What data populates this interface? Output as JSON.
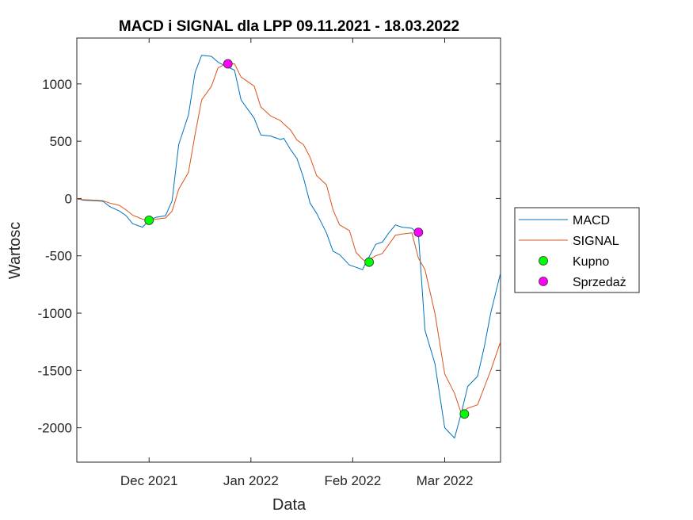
{
  "chart_data": {
    "type": "line",
    "title": "MACD i SIGNAL dla LPP 09.11.2021 - 18.03.2022",
    "xlabel": "Data",
    "ylabel": "Wartosc",
    "xlim": [
      "2021-11-09",
      "2022-03-18"
    ],
    "ylim": [
      -2300,
      1400
    ],
    "y_ticks": [
      -2000,
      -1500,
      -1000,
      -500,
      0,
      500,
      1000
    ],
    "y_tick_labels": [
      "-2000",
      "-1500",
      "-1000",
      "-500",
      "0",
      "500",
      "1000"
    ],
    "x_ticks": [
      "2021-12-01",
      "2022-01-01",
      "2022-02-01",
      "2022-03-01"
    ],
    "x_tick_labels": [
      "Dec 2021",
      "Jan 2022",
      "Feb 2022",
      "Mar 2022"
    ],
    "grid": false,
    "legend_position": "right",
    "series": [
      {
        "name": "MACD",
        "color": "#0072BD",
        "points": [
          [
            "2021-11-09",
            0
          ],
          [
            "2021-11-11",
            -15
          ],
          [
            "2021-11-15",
            -20
          ],
          [
            "2021-11-17",
            -25
          ],
          [
            "2021-11-19",
            -70
          ],
          [
            "2021-11-22",
            -110
          ],
          [
            "2021-11-24",
            -150
          ],
          [
            "2021-11-26",
            -220
          ],
          [
            "2021-11-29",
            -250
          ],
          [
            "2021-12-01",
            -190
          ],
          [
            "2021-12-03",
            -165
          ],
          [
            "2021-12-06",
            -150
          ],
          [
            "2021-12-08",
            -20
          ],
          [
            "2021-12-10",
            470
          ],
          [
            "2021-12-13",
            730
          ],
          [
            "2021-12-15",
            1100
          ],
          [
            "2021-12-17",
            1250
          ],
          [
            "2021-12-20",
            1240
          ],
          [
            "2021-12-22",
            1190
          ],
          [
            "2021-12-24",
            1160
          ],
          [
            "2021-12-27",
            1120
          ],
          [
            "2021-12-29",
            860
          ],
          [
            "2022-01-02",
            700
          ],
          [
            "2022-01-04",
            555
          ],
          [
            "2022-01-07",
            545
          ],
          [
            "2022-01-10",
            515
          ],
          [
            "2022-01-11",
            525
          ],
          [
            "2022-01-13",
            430
          ],
          [
            "2022-01-15",
            350
          ],
          [
            "2022-01-17",
            180
          ],
          [
            "2022-01-19",
            -40
          ],
          [
            "2022-01-21",
            -130
          ],
          [
            "2022-01-24",
            -300
          ],
          [
            "2022-01-26",
            -460
          ],
          [
            "2022-01-28",
            -490
          ],
          [
            "2022-01-31",
            -580
          ],
          [
            "2022-02-02",
            -600
          ],
          [
            "2022-02-04",
            -620
          ],
          [
            "2022-02-05",
            -560
          ],
          [
            "2022-02-08",
            -400
          ],
          [
            "2022-02-10",
            -380
          ],
          [
            "2022-02-12",
            -300
          ],
          [
            "2022-02-14",
            -230
          ],
          [
            "2022-02-16",
            -250
          ],
          [
            "2022-02-19",
            -260
          ],
          [
            "2022-02-21",
            -310
          ],
          [
            "2022-02-23",
            -1150
          ],
          [
            "2022-02-26",
            -1440
          ],
          [
            "2022-03-01",
            -2000
          ],
          [
            "2022-03-04",
            -2090
          ],
          [
            "2022-03-06",
            -1880
          ],
          [
            "2022-03-08",
            -1640
          ],
          [
            "2022-03-11",
            -1550
          ],
          [
            "2022-03-13",
            -1300
          ],
          [
            "2022-03-15",
            -1000
          ],
          [
            "2022-03-18",
            -650
          ]
        ]
      },
      {
        "name": "SIGNAL",
        "color": "#D95319",
        "points": [
          [
            "2021-11-09",
            -5
          ],
          [
            "2021-11-11",
            -10
          ],
          [
            "2021-11-15",
            -15
          ],
          [
            "2021-11-17",
            -20
          ],
          [
            "2021-11-19",
            -40
          ],
          [
            "2021-11-22",
            -60
          ],
          [
            "2021-11-24",
            -100
          ],
          [
            "2021-11-26",
            -145
          ],
          [
            "2021-11-29",
            -180
          ],
          [
            "2021-12-01",
            -195
          ],
          [
            "2021-12-03",
            -180
          ],
          [
            "2021-12-06",
            -170
          ],
          [
            "2021-12-08",
            -110
          ],
          [
            "2021-12-10",
            80
          ],
          [
            "2021-12-13",
            230
          ],
          [
            "2021-12-15",
            560
          ],
          [
            "2021-12-17",
            860
          ],
          [
            "2021-12-20",
            980
          ],
          [
            "2021-12-22",
            1140
          ],
          [
            "2021-12-24",
            1170
          ],
          [
            "2021-12-27",
            1175
          ],
          [
            "2021-12-29",
            1060
          ],
          [
            "2022-01-02",
            980
          ],
          [
            "2022-01-04",
            800
          ],
          [
            "2022-01-07",
            720
          ],
          [
            "2022-01-10",
            680
          ],
          [
            "2022-01-11",
            650
          ],
          [
            "2022-01-13",
            600
          ],
          [
            "2022-01-15",
            510
          ],
          [
            "2022-01-17",
            470
          ],
          [
            "2022-01-19",
            360
          ],
          [
            "2022-01-21",
            200
          ],
          [
            "2022-01-24",
            120
          ],
          [
            "2022-01-26",
            -100
          ],
          [
            "2022-01-28",
            -230
          ],
          [
            "2022-01-31",
            -280
          ],
          [
            "2022-02-02",
            -470
          ],
          [
            "2022-02-04",
            -530
          ],
          [
            "2022-02-05",
            -550
          ],
          [
            "2022-02-08",
            -500
          ],
          [
            "2022-02-10",
            -480
          ],
          [
            "2022-02-12",
            -400
          ],
          [
            "2022-02-14",
            -320
          ],
          [
            "2022-02-16",
            -310
          ],
          [
            "2022-02-19",
            -300
          ],
          [
            "2022-02-21",
            -520
          ],
          [
            "2022-02-23",
            -620
          ],
          [
            "2022-02-26",
            -1000
          ],
          [
            "2022-03-01",
            -1530
          ],
          [
            "2022-03-04",
            -1700
          ],
          [
            "2022-03-06",
            -1870
          ],
          [
            "2022-03-08",
            -1830
          ],
          [
            "2022-03-11",
            -1800
          ],
          [
            "2022-03-13",
            -1650
          ],
          [
            "2022-03-15",
            -1500
          ],
          [
            "2022-03-18",
            -1250
          ]
        ]
      }
    ],
    "markers": [
      {
        "name": "Kupno",
        "color": "#00FF00",
        "points": [
          [
            "2021-12-01",
            -190
          ],
          [
            "2022-02-06",
            -555
          ],
          [
            "2022-03-07",
            -1880
          ]
        ]
      },
      {
        "name": "Sprzedaż",
        "color": "#FF00FF",
        "points": [
          [
            "2021-12-25",
            1175
          ],
          [
            "2022-02-21",
            -295
          ]
        ]
      }
    ]
  }
}
